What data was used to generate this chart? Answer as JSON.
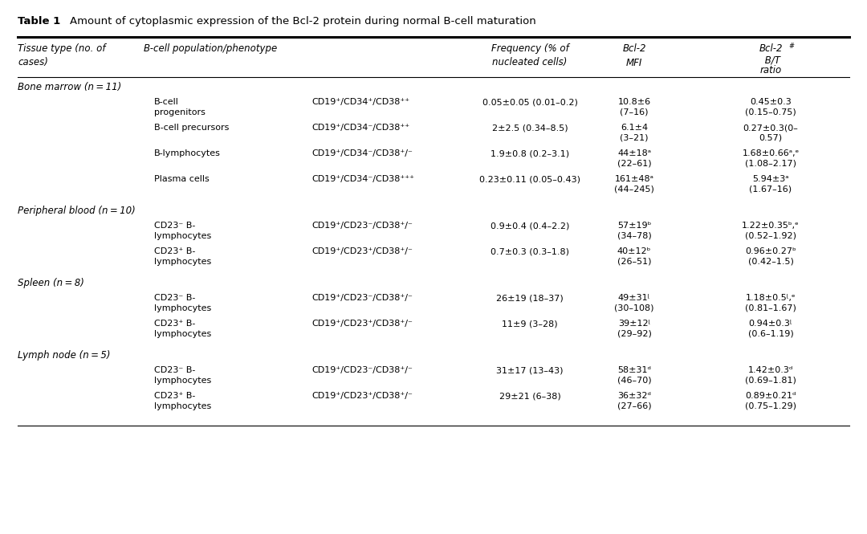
{
  "bg_color": "#ffffff",
  "title_bold": "Table 1",
  "title_text": "Amount of cytoplasmic expression of the Bcl-2 protein during normal B-cell maturation",
  "sections": [
    {
      "name": "Bone marrow (n = 11)",
      "rows": [
        {
          "sub": "B-cell\nprogenitors",
          "phenotype": "CD19⁺/CD34⁺/CD38⁺⁺",
          "freq": "0.05±0.05 (0.01–0.2)",
          "mfi": "10.8±6\n(7–16)",
          "ratio": "0.45±0.3\n(0.15–0.75)"
        },
        {
          "sub": "B-cell precursors",
          "phenotype": "CD19⁺/CD34⁻/CD38⁺⁺",
          "freq": "2±2.5 (0.34–8.5)",
          "mfi": "6.1±4\n(3–21)",
          "ratio": "0.27±0.3(0–\n0.57)"
        },
        {
          "sub": "B-lymphocytes",
          "phenotype": "CD19⁺/CD34⁻/CD38⁺/⁻",
          "freq": "1.9±0.8 (0.2–3.1)",
          "mfi": "44±18ᵃ\n(22–61)",
          "ratio": "1.68±0.66ᵃ,ᵉ\n(1.08–2.17)"
        },
        {
          "sub": "Plasma cells",
          "phenotype": "CD19⁺/CD34⁻/CD38⁺⁺⁺",
          "freq": "0.23±0.11 (0.05–0.43)",
          "mfi": "161±48ᵃ\n(44–245)",
          "ratio": "5.94±3ᵃ\n(1.67–16)"
        }
      ]
    },
    {
      "name": "Peripheral blood (n = 10)",
      "rows": [
        {
          "sub": "CD23⁻ B-\nlymphocytes",
          "phenotype": "CD19⁺/CD23⁻/CD38⁺/⁻",
          "freq": "0.9±0.4 (0.4–2.2)",
          "mfi": "57±19ᵇ\n(34–78)",
          "ratio": "1.22±0.35ᵇ,ᵉ\n(0.52–1.92)"
        },
        {
          "sub": "CD23⁺ B-\nlymphocytes",
          "phenotype": "CD19⁺/CD23⁺/CD38⁺/⁻",
          "freq": "0.7±0.3 (0.3–1.8)",
          "mfi": "40±12ᵇ\n(26–51)",
          "ratio": "0.96±0.27ᵇ\n(0.42–1.5)"
        }
      ]
    },
    {
      "name": "Spleen (n = 8)",
      "rows": [
        {
          "sub": "CD23⁻ B-\nlymphocytes",
          "phenotype": "CD19⁺/CD23⁻/CD38⁺/⁻",
          "freq": "26±19 (18–37)",
          "mfi": "49±31ᶩ\n(30–108)",
          "ratio": "1.18±0.5ᶩ,ᵉ\n(0.81–1.67)"
        },
        {
          "sub": "CD23⁺ B-\nlymphocytes",
          "phenotype": "CD19⁺/CD23⁺/CD38⁺/⁻",
          "freq": "11±9 (3–28)",
          "mfi": "39±12ᶩ\n(29–92)",
          "ratio": "0.94±0.3ᶩ\n(0.6–1.19)"
        }
      ]
    },
    {
      "name": "Lymph node (n = 5)",
      "rows": [
        {
          "sub": "CD23⁻ B-\nlymphocytes",
          "phenotype": "CD19⁺/CD23⁻/CD38⁺/⁻",
          "freq": "31±17 (13–43)",
          "mfi": "58±31ᵈ\n(46–70)",
          "ratio": "1.42±0.3ᵈ\n(0.69–1.81)"
        },
        {
          "sub": "CD23⁺ B-\nlymphocytes",
          "phenotype": "CD19⁺/CD23⁺/CD38⁺/⁻",
          "freq": "29±21 (6–38)",
          "mfi": "36±32ᵈ\n(27–66)",
          "ratio": "0.89±0.21ᵈ\n(0.75–1.29)"
        }
      ]
    }
  ]
}
